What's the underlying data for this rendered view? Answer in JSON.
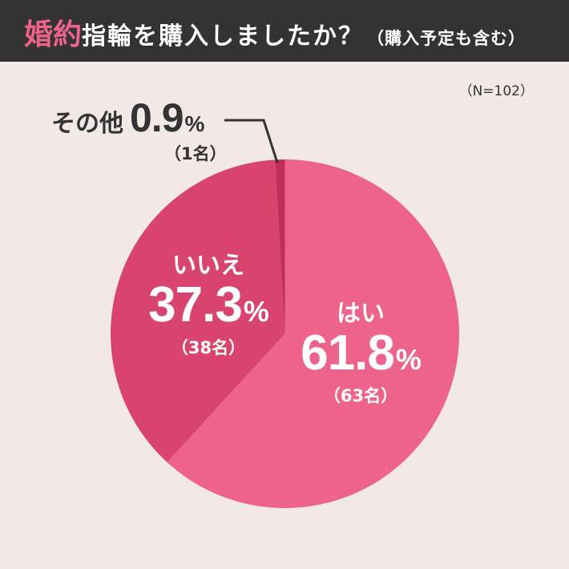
{
  "header": {
    "title_accent": "婚約",
    "title_main": "指輪を購入しましたか？",
    "title_sub": "（購入予定も含む）"
  },
  "sample_size": "（N=102）",
  "colors": {
    "background": "#F2E9E7",
    "header_bg": "#333333",
    "accent": "#EE638B",
    "yes": "#EE638B",
    "no": "#D9436F",
    "other": "#BF2D5C",
    "leader_line": "#333333"
  },
  "labels": {
    "yes": {
      "name": "はい",
      "pct": "61.8",
      "sign": "%",
      "count": "（63名）"
    },
    "no": {
      "name": "いいえ",
      "pct": "37.3",
      "sign": "%",
      "count": "（38名）"
    },
    "other": {
      "name": "その他",
      "pct": "0.9",
      "sign": "%",
      "count": "（1名）"
    }
  },
  "chart_data": {
    "type": "pie",
    "title": "婚約指輪を購入しましたか？（購入予定も含む）",
    "subtitle": "（N=102）",
    "categories": [
      "はい",
      "いいえ",
      "その他"
    ],
    "values": [
      61.8,
      37.3,
      0.9
    ],
    "counts": [
      63,
      38,
      1
    ],
    "unit": "%",
    "start_angle": "12 o'clock",
    "direction": "clockwise",
    "legend": "none (direct labels)"
  }
}
